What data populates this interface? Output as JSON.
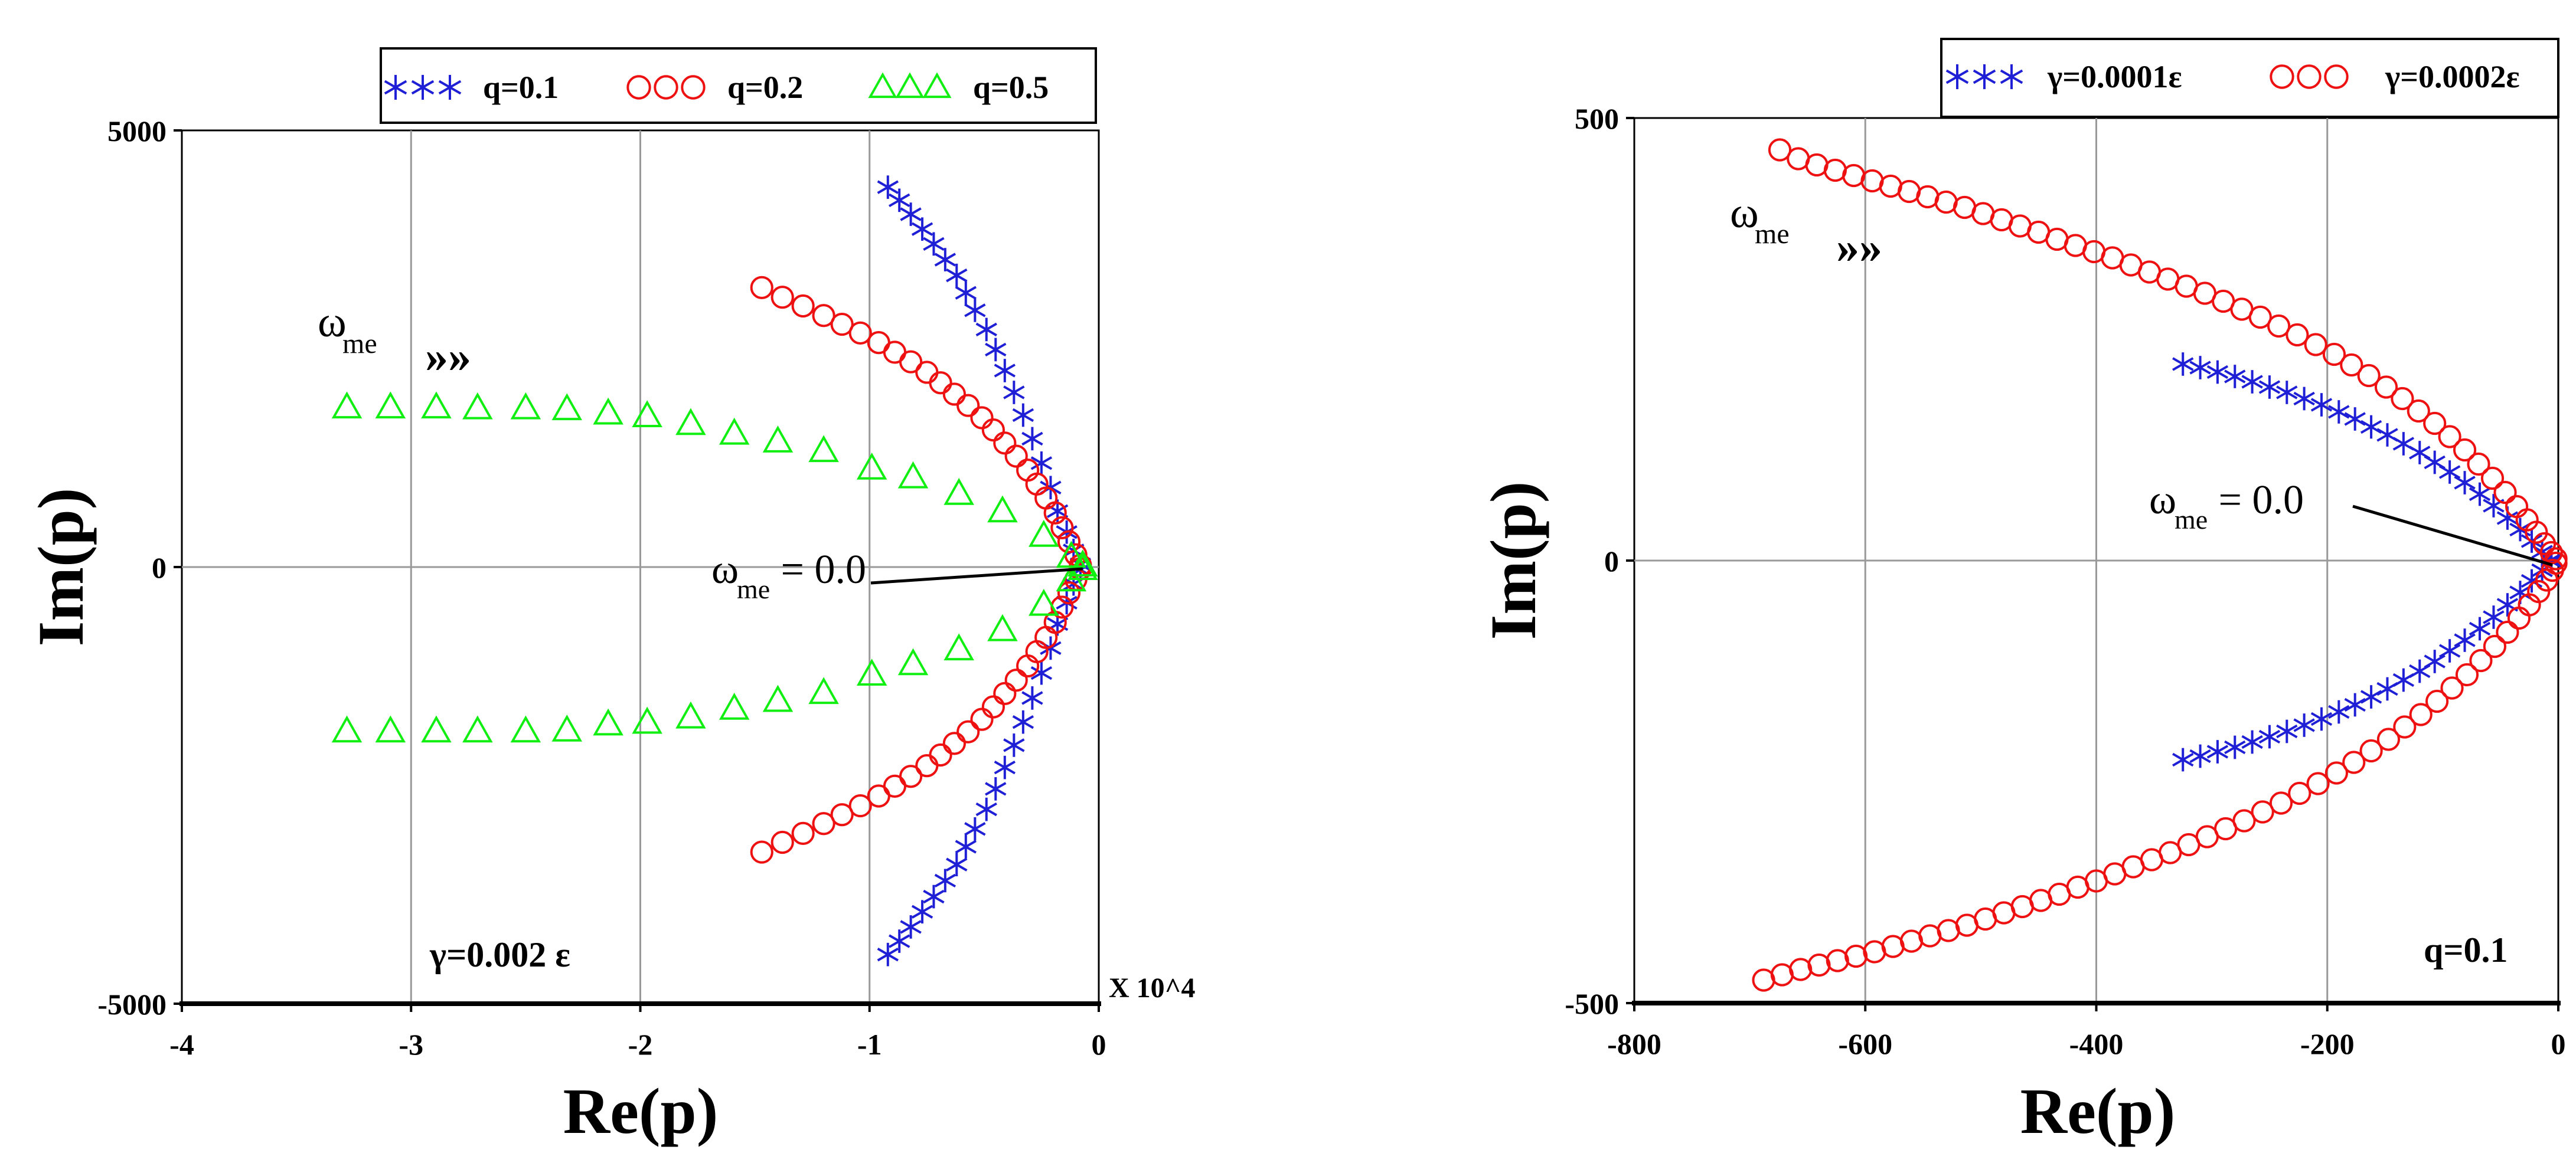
{
  "chart_data": [
    {
      "type": "scatter",
      "title": "",
      "xlabel": "Re(p)",
      "ylabel": "Im(p)",
      "x_multiplier_label": "X 10^4",
      "xlim": [
        -4,
        0
      ],
      "ylim": [
        -5000,
        5000
      ],
      "x_ticks": [
        -4,
        -3,
        -2,
        -1,
        0
      ],
      "y_ticks": [
        -5000,
        0,
        5000
      ],
      "x_tick_labels": [
        "-4",
        "-3",
        "-2",
        "-1",
        "0"
      ],
      "y_tick_labels": [
        "-5000",
        "0",
        "5000"
      ],
      "grid": true,
      "legend": {
        "location": "top",
        "entries": [
          "q=0.1",
          "q=0.2",
          "q=0.5"
        ]
      },
      "annotations": {
        "param_label": "γ=0.002 ε",
        "omega_symbol": "ω",
        "omega_sub": "me",
        "omega_eq": " = 0.0",
        "arrow_glyph": "»»",
        "pointer_target": [
          -0.07,
          -20
        ]
      },
      "series": [
        {
          "name": "q=0.1",
          "marker": "asterisk",
          "color": "#1f1fd6",
          "x": [
            -0.92,
            -0.87,
            -0.82,
            -0.77,
            -0.72,
            -0.67,
            -0.62,
            -0.58,
            -0.54,
            -0.49,
            -0.45,
            -0.41,
            -0.37,
            -0.33,
            -0.29,
            -0.25,
            -0.21,
            -0.18,
            -0.14,
            -0.11,
            -0.08
          ],
          "y": [
            4350,
            4200,
            4040,
            3870,
            3700,
            3520,
            3340,
            3140,
            2940,
            2720,
            2490,
            2250,
            2000,
            1740,
            1470,
            1190,
            910,
            640,
            400,
            190,
            30
          ],
          "mirror": true
        },
        {
          "name": "q=0.2",
          "marker": "circle",
          "color": "#ee1111",
          "x": [
            -1.47,
            -1.38,
            -1.29,
            -1.2,
            -1.12,
            -1.04,
            -0.96,
            -0.89,
            -0.82,
            -0.75,
            -0.69,
            -0.63,
            -0.57,
            -0.51,
            -0.46,
            -0.41,
            -0.36,
            -0.31,
            -0.27,
            -0.23,
            -0.19,
            -0.16,
            -0.13,
            -0.1,
            -0.08
          ],
          "y": [
            3200,
            3090,
            2990,
            2880,
            2780,
            2680,
            2570,
            2460,
            2350,
            2230,
            2110,
            1980,
            1850,
            1710,
            1570,
            1420,
            1270,
            1110,
            950,
            790,
            620,
            450,
            290,
            140,
            20
          ],
          "mirror": true
        },
        {
          "name": "q=0.5",
          "marker": "triangle",
          "color": "#11ee11",
          "x": [
            -3.28,
            -3.09,
            -2.89,
            -2.71,
            -2.5,
            -2.32,
            -2.14,
            -1.97,
            -1.78,
            -1.59,
            -1.4,
            -1.2,
            -0.99,
            -0.81,
            -0.61,
            -0.42,
            -0.24,
            -0.12,
            -0.07
          ],
          "y": [
            1830,
            1830,
            1830,
            1820,
            1820,
            1810,
            1760,
            1730,
            1640,
            1530,
            1440,
            1330,
            1130,
            1030,
            840,
            640,
            360,
            120,
            20
          ],
          "mirror_y": [
            -1880,
            -1880,
            -1880,
            -1880,
            -1880,
            -1870,
            -1800,
            -1780,
            -1720,
            -1620,
            -1530,
            -1440,
            -1230,
            -1110,
            -940,
            -720,
            -430,
            -150,
            -20
          ]
        }
      ]
    },
    {
      "type": "scatter",
      "title": "",
      "xlabel": "Re(p)",
      "ylabel": "Im(p)",
      "xlim": [
        -800,
        0
      ],
      "ylim": [
        -500,
        500
      ],
      "x_ticks": [
        -800,
        -600,
        -400,
        -200,
        0
      ],
      "y_ticks": [
        -500,
        0,
        500
      ],
      "x_tick_labels": [
        "-800",
        "-600",
        "-400",
        "-200",
        "0"
      ],
      "y_tick_labels": [
        "-500",
        "0",
        "500"
      ],
      "grid": true,
      "legend": {
        "location": "top-right",
        "entries": [
          "γ=0.0001ε",
          "γ=0.0002ε"
        ]
      },
      "annotations": {
        "param_label": "q=0.1",
        "omega_symbol": "ω",
        "omega_sub": "me",
        "omega_eq": " = 0.0",
        "arrow_glyph": "»»",
        "pointer_target": [
          -5,
          -5
        ]
      },
      "series": [
        {
          "name": "γ=0.0001ε",
          "marker": "asterisk",
          "color": "#1f1fd6",
          "x": [
            -325,
            -310,
            -295,
            -280,
            -265,
            -250,
            -235,
            -220,
            -205,
            -190,
            -176,
            -162,
            -148,
            -134,
            -120,
            -107,
            -94,
            -81,
            -68,
            -56,
            -44,
            -33,
            -23,
            -14,
            -6
          ],
          "y": [
            222,
            218,
            213,
            208,
            202,
            196,
            190,
            183,
            176,
            168,
            160,
            151,
            142,
            132,
            122,
            111,
            100,
            88,
            75,
            62,
            48,
            35,
            22,
            10,
            1
          ],
          "mirror_y": [
            -225,
            -221,
            -216,
            -211,
            -205,
            -199,
            -193,
            -186,
            -179,
            -171,
            -163,
            -154,
            -145,
            -135,
            -125,
            -114,
            -102,
            -90,
            -77,
            -64,
            -50,
            -36,
            -23,
            -11,
            -1
          ]
        },
        {
          "name": "γ=0.0002ε",
          "marker": "circle",
          "color": "#ee1111",
          "x": [
            -674,
            -658,
            -642,
            -626,
            -610,
            -594,
            -578,
            -562,
            -546,
            -530,
            -514,
            -498,
            -482,
            -466,
            -450,
            -434,
            -418,
            -402,
            -386,
            -370,
            -354,
            -338,
            -322,
            -306,
            -290,
            -274,
            -258,
            -242,
            -226,
            -210,
            -194,
            -179,
            -164,
            -149,
            -135,
            -121,
            -107,
            -94,
            -81,
            -69,
            -57,
            -46,
            -36,
            -27,
            -19,
            -12,
            -6,
            -2
          ],
          "y": [
            464,
            454,
            447,
            441,
            435,
            429,
            423,
            417,
            411,
            405,
            399,
            392,
            385,
            378,
            371,
            363,
            356,
            349,
            342,
            334,
            326,
            318,
            310,
            302,
            293,
            284,
            275,
            265,
            255,
            244,
            233,
            221,
            209,
            196,
            183,
            169,
            155,
            140,
            125,
            109,
            93,
            77,
            61,
            46,
            32,
            19,
            9,
            2
          ],
          "mirror_x": [
            -688,
            -672,
            -656,
            -640,
            -624,
            -608,
            -592,
            -576,
            -560,
            -544,
            -528,
            -512,
            -496,
            -480,
            -464,
            -448,
            -432,
            -416,
            -400,
            -384,
            -368,
            -352,
            -336,
            -320,
            -304,
            -288,
            -272,
            -256,
            -240,
            -224,
            -208,
            -192,
            -177,
            -162,
            -147,
            -133,
            -119,
            -105,
            -92,
            -79,
            -67,
            -55,
            -44,
            -34,
            -25,
            -17,
            -10,
            -5,
            -2
          ],
          "mirror_y": [
            -474,
            -468,
            -462,
            -457,
            -452,
            -447,
            -442,
            -436,
            -430,
            -424,
            -418,
            -412,
            -405,
            -398,
            -391,
            -384,
            -377,
            -369,
            -362,
            -354,
            -346,
            -338,
            -330,
            -321,
            -312,
            -303,
            -294,
            -284,
            -274,
            -263,
            -252,
            -240,
            -228,
            -215,
            -202,
            -188,
            -174,
            -159,
            -144,
            -129,
            -113,
            -97,
            -81,
            -65,
            -50,
            -35,
            -22,
            -11,
            -3
          ]
        }
      ]
    }
  ]
}
